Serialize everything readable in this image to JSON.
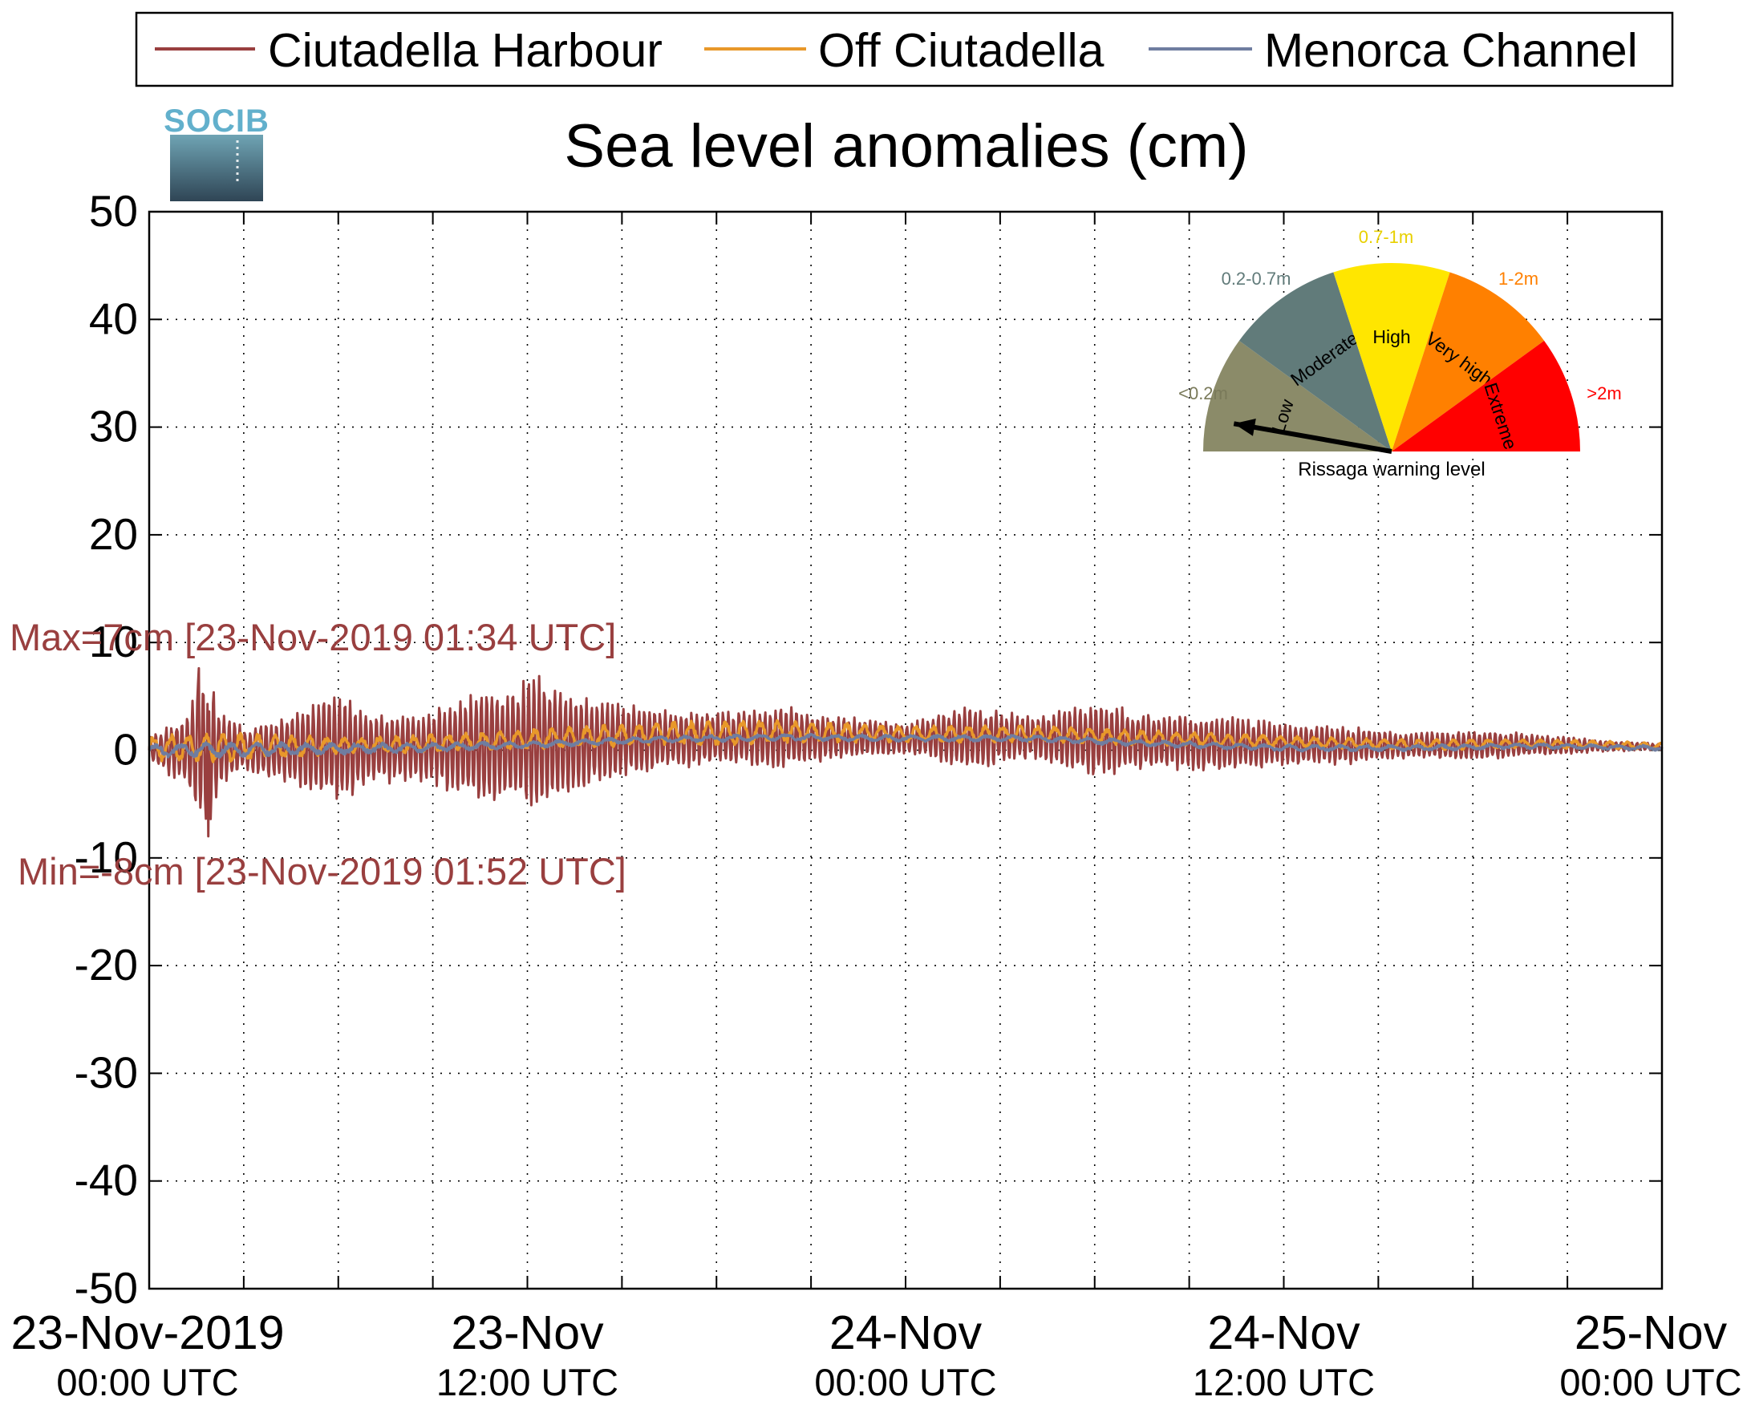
{
  "logo": {
    "text": "SOCIB"
  },
  "chart_data": {
    "type": "line",
    "title": "Sea level anomalies (cm)",
    "ylabel": "",
    "xlabel": "",
    "ylim": [
      -50,
      50
    ],
    "yticks": [
      50,
      40,
      30,
      20,
      10,
      0,
      -10,
      -20,
      -30,
      -40,
      -50
    ],
    "grid": true,
    "legend_position": "top",
    "x_range_hours": [
      0,
      48
    ],
    "xticks": [
      {
        "hours": 0,
        "line1": "23-Nov-2019",
        "line2": "00:00 UTC"
      },
      {
        "hours": 12,
        "line1": "23-Nov",
        "line2": "12:00 UTC"
      },
      {
        "hours": 24,
        "line1": "24-Nov",
        "line2": "00:00 UTC"
      },
      {
        "hours": 36,
        "line1": "24-Nov",
        "line2": "12:00 UTC"
      },
      {
        "hours": 48,
        "line1": "25-Nov",
        "line2": "00:00 UTC"
      }
    ],
    "series": [
      {
        "name": "Ciutadella Harbour",
        "color": "#993f3f",
        "oscillation_period_min": 10,
        "amplitude_envelope_cm": [
          [
            0,
            1.2
          ],
          [
            1.2,
            3.5
          ],
          [
            1.57,
            7.6
          ],
          [
            1.87,
            8
          ],
          [
            2.2,
            4
          ],
          [
            3,
            2
          ],
          [
            4.5,
            3.5
          ],
          [
            6,
            5.5
          ],
          [
            7,
            3.5
          ],
          [
            8.5,
            3
          ],
          [
            10,
            5
          ],
          [
            12.5,
            6.5
          ],
          [
            14,
            4
          ],
          [
            16,
            3
          ],
          [
            18.5,
            2.5
          ],
          [
            20,
            3
          ],
          [
            22,
            2
          ],
          [
            24,
            1.5
          ],
          [
            26,
            3
          ],
          [
            28,
            2
          ],
          [
            30,
            3.5
          ],
          [
            32,
            2.5
          ],
          [
            34,
            2.8
          ],
          [
            36,
            2
          ],
          [
            38,
            1.8
          ],
          [
            40,
            1.2
          ],
          [
            42,
            1.5
          ],
          [
            44,
            1
          ],
          [
            46,
            0.6
          ],
          [
            48,
            0.3
          ]
        ],
        "baseline_cm": [
          [
            0,
            0
          ],
          [
            8,
            0.2
          ],
          [
            12,
            0.5
          ],
          [
            16,
            1
          ],
          [
            20,
            1.2
          ],
          [
            24,
            1.1
          ],
          [
            28,
            1.2
          ],
          [
            32,
            0.8
          ],
          [
            36,
            0.5
          ],
          [
            40,
            0.4
          ],
          [
            44,
            0.5
          ],
          [
            48,
            0.3
          ]
        ],
        "max_annotation": "Max=7cm [23-Nov-2019 01:34 UTC]",
        "min_annotation": "Min=-8cm [23-Nov-2019 01:52 UTC]"
      },
      {
        "name": "Off Ciutadella",
        "color": "#e8982a",
        "amplitude_envelope_cm": [
          [
            0,
            1.5
          ],
          [
            2,
            2
          ],
          [
            6,
            1
          ],
          [
            12,
            1.2
          ],
          [
            18,
            1.5
          ],
          [
            24,
            1
          ],
          [
            30,
            1
          ],
          [
            36,
            0.7
          ],
          [
            42,
            0.6
          ],
          [
            48,
            0.4
          ]
        ],
        "baseline_cm": [
          [
            0,
            0.2
          ],
          [
            8,
            0.5
          ],
          [
            12,
            1
          ],
          [
            16,
            1.5
          ],
          [
            20,
            1.7
          ],
          [
            24,
            1.5
          ],
          [
            28,
            1.5
          ],
          [
            32,
            1.1
          ],
          [
            36,
            0.8
          ],
          [
            40,
            0.5
          ],
          [
            44,
            0.6
          ],
          [
            48,
            0.4
          ]
        ]
      },
      {
        "name": "Menorca Channel",
        "color": "#6f7da0",
        "amplitude_envelope_cm": [
          [
            0,
            0.8
          ],
          [
            2,
            1
          ],
          [
            12,
            0.4
          ],
          [
            24,
            0.4
          ],
          [
            36,
            0.4
          ],
          [
            48,
            0.3
          ]
        ],
        "baseline_cm": [
          [
            0,
            0
          ],
          [
            8,
            0.2
          ],
          [
            12,
            0.5
          ],
          [
            16,
            1
          ],
          [
            20,
            1.2
          ],
          [
            24,
            1.1
          ],
          [
            28,
            1.1
          ],
          [
            32,
            0.6
          ],
          [
            36,
            0.2
          ],
          [
            40,
            0.2
          ],
          [
            44,
            0.4
          ],
          [
            48,
            0.2
          ]
        ]
      }
    ]
  },
  "warning_gauge": {
    "title": "Rissaga warning level",
    "pointer_level": "Low",
    "segments": [
      {
        "label": "Low",
        "range": "<0.2m",
        "color": "#8b8b69",
        "range_color": "#7a7a5a"
      },
      {
        "label": "Moderate",
        "range": "0.2-0.7m",
        "color": "#617b7a",
        "range_color": "#617b7a"
      },
      {
        "label": "High",
        "range": "0.7-1m",
        "color": "#ffe600",
        "range_color": "#e8d000"
      },
      {
        "label": "Very high",
        "range": "1-2m",
        "color": "#ff8000",
        "range_color": "#ff8000"
      },
      {
        "label": "Extreme",
        "range": ">2m",
        "color": "#ff0000",
        "range_color": "#ff0000"
      }
    ]
  }
}
